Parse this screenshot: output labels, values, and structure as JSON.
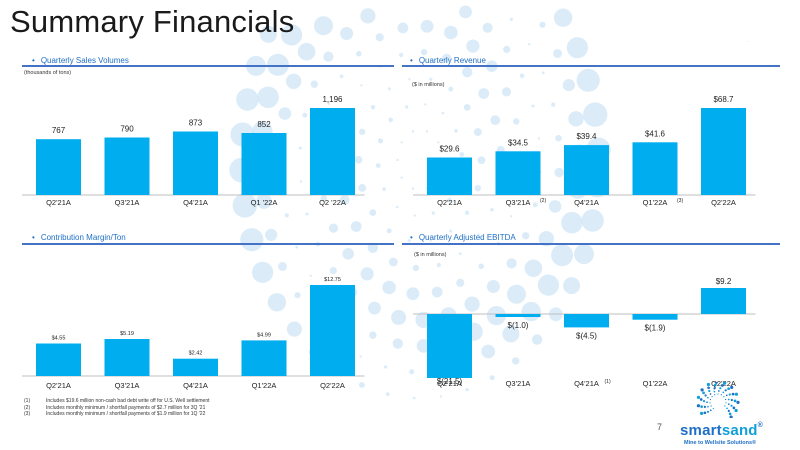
{
  "page": {
    "title": "Summary Financials",
    "page_number": "7",
    "mark": ".",
    "colors": {
      "bar": "#00adef",
      "accent": "#1f6fc6",
      "rule": "#4472c4"
    }
  },
  "panels": {
    "sales": {
      "heading": "Quarterly Sales Volumes",
      "unit": "(thousands of tons)"
    },
    "revenue": {
      "heading": "Quarterly Revenue",
      "unit": "($ in millions)"
    },
    "margin": {
      "heading": "Contribution Margin/Ton",
      "unit": ""
    },
    "ebitda": {
      "heading": "Quarterly Adjusted EBITDA",
      "unit": "($ in millions)"
    }
  },
  "footnotes": [
    {
      "num": "(1)",
      "text": "Includes $19.6 million non-cash bad debt write off for U.S. Well settlement"
    },
    {
      "num": "(2)",
      "text": "Includes monthly minimum / shortfall payments of $2.7 million for 3Q '21"
    },
    {
      "num": "(3)",
      "text": "Includes monthly minimum / shortfall payments of $1.9 million for 1Q '22"
    }
  ],
  "logo": {
    "word_a": "smart",
    "word_b": "sand",
    "reg": "®",
    "tagline": "Mine to Wellsite Solutions®"
  },
  "chart_data": [
    {
      "type": "bar",
      "title": "Quarterly Sales Volumes",
      "ylabel": "(thousands of tons)",
      "categories": [
        "Q2'21A",
        "Q3'21A",
        "Q4'21A",
        "Q1 '22A",
        "Q2 '22A"
      ],
      "values": [
        767,
        790,
        873,
        852,
        1196
      ],
      "labels": [
        "767",
        "790",
        "873",
        "852",
        "1,196"
      ],
      "footnote_marks": [
        "",
        "",
        "",
        "",
        ""
      ]
    },
    {
      "type": "bar",
      "title": "Quarterly Revenue",
      "ylabel": "($ in millions)",
      "categories": [
        "Q2'21A",
        "Q3'21A",
        "Q4'21A",
        "Q1'22A",
        "Q2'22A"
      ],
      "values": [
        29.6,
        34.5,
        39.4,
        41.6,
        68.7
      ],
      "labels": [
        "$29.6",
        "$34.5",
        "$39.4",
        "$41.6",
        "$68.7"
      ],
      "footnote_marks": [
        "",
        "(2)",
        "",
        "(3)",
        ""
      ]
    },
    {
      "type": "bar",
      "title": "Contribution Margin/Ton",
      "categories": [
        "Q2'21A",
        "Q3'21A",
        "Q4'21A",
        "Q1'22A",
        "Q2'22A"
      ],
      "values": [
        4.55,
        5.19,
        2.42,
        4.99,
        12.75
      ],
      "labels": [
        "$4.55",
        "$5.19",
        "$2.42",
        "$4.99",
        "$12.75"
      ],
      "footnote_marks": [
        "",
        "",
        "",
        "",
        ""
      ]
    },
    {
      "type": "bar",
      "title": "Quarterly Adjusted EBITDA",
      "ylabel": "($ in millions)",
      "categories": [
        "Q2'21A",
        "Q3'21A",
        "Q4'21A",
        "Q1'22A",
        "Q2'22A"
      ],
      "values": [
        -21.5,
        -1.0,
        -4.5,
        -1.9,
        9.2
      ],
      "labels": [
        "$(21.5)",
        "$(1.0)",
        "$(4.5)",
        "$(1.9)",
        "$9.2"
      ],
      "footnote_marks": [
        "",
        "",
        "(1)",
        "",
        ""
      ]
    }
  ]
}
